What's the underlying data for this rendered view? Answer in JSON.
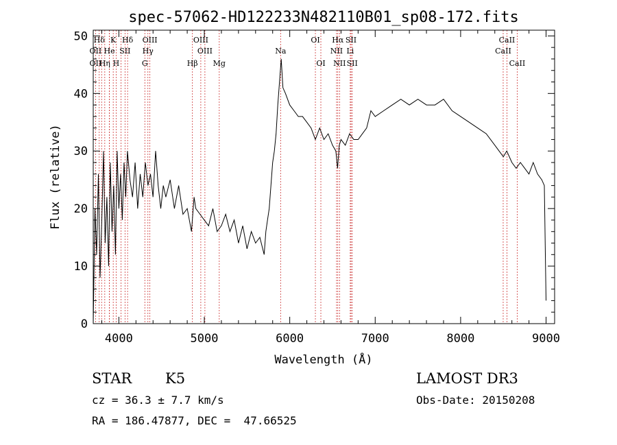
{
  "chart_data": {
    "type": "line",
    "title": "spec-57062-HD122233N482110B01_sp08-172.fits",
    "xlabel": "Wavelength (Å)",
    "ylabel": "Flux (relative)",
    "xlim": [
      3700,
      9100
    ],
    "ylim": [
      0,
      51
    ],
    "xticks": [
      4000,
      5000,
      6000,
      7000,
      8000,
      9000
    ],
    "yticks": [
      0,
      10,
      20,
      30,
      40,
      50
    ],
    "grid": false,
    "line_color": "#000000",
    "marker_color": "#cc3333",
    "series": [
      {
        "x": [
          3700,
          3720,
          3740,
          3760,
          3780,
          3800,
          3820,
          3840,
          3860,
          3880,
          3900,
          3920,
          3940,
          3960,
          3980,
          4000,
          4020,
          4040,
          4060,
          4080,
          4100,
          4130,
          4160,
          4190,
          4220,
          4250,
          4280,
          4310,
          4340,
          4370,
          4400,
          4430,
          4460,
          4490,
          4520,
          4550,
          4600,
          4650,
          4700,
          4750,
          4800,
          4850,
          4880,
          4900,
          4950,
          5000,
          5050,
          5100,
          5150,
          5200,
          5250,
          5300,
          5350,
          5400,
          5450,
          5500,
          5550,
          5600,
          5650,
          5700,
          5720,
          5740,
          5760,
          5780,
          5800,
          5820,
          5840,
          5860,
          5880,
          5900,
          5920,
          5950,
          6000,
          6050,
          6100,
          6150,
          6200,
          6250,
          6300,
          6350,
          6400,
          6450,
          6500,
          6540,
          6560,
          6580,
          6600,
          6650,
          6700,
          6750,
          6800,
          6850,
          6900,
          6950,
          7000,
          7100,
          7200,
          7300,
          7400,
          7500,
          7600,
          7700,
          7800,
          7900,
          8000,
          8100,
          8200,
          8300,
          8400,
          8500,
          8540,
          8600,
          8650,
          8700,
          8750,
          8800,
          8850,
          8900,
          8950,
          8980,
          9000
        ],
        "values": [
          0,
          20,
          12,
          26,
          8,
          18,
          30,
          14,
          22,
          10,
          28,
          16,
          24,
          12,
          30,
          20,
          26,
          18,
          28,
          22,
          30,
          25,
          22,
          28,
          20,
          26,
          22,
          28,
          24,
          26,
          22,
          30,
          24,
          20,
          24,
          22,
          25,
          20,
          24,
          19,
          20,
          16,
          22,
          20,
          19,
          18,
          17,
          20,
          16,
          17,
          19,
          16,
          18,
          14,
          17,
          13,
          16,
          14,
          15,
          12,
          16,
          18,
          20,
          24,
          28,
          30,
          33,
          38,
          42,
          46,
          41,
          40,
          38,
          37,
          36,
          36,
          35,
          34,
          32,
          34,
          32,
          33,
          31,
          30,
          27,
          31,
          32,
          31,
          33,
          32,
          32,
          33,
          34,
          37,
          36,
          37,
          38,
          39,
          38,
          39,
          38,
          38,
          39,
          37,
          36,
          35,
          34,
          33,
          31,
          29,
          30,
          28,
          27,
          28,
          27,
          26,
          28,
          26,
          25,
          24,
          4
        ]
      }
    ],
    "lines": [
      {
        "name": "Hδ",
        "x": 3770,
        "row": 0
      },
      {
        "name": "K",
        "x": 3934,
        "row": 0
      },
      {
        "name": "Hδ",
        "x": 4102,
        "row": 0
      },
      {
        "name": "OIII",
        "x": 4363,
        "row": 0
      },
      {
        "name": "OIII",
        "x": 4959,
        "row": 0
      },
      {
        "name": "OI",
        "x": 6300,
        "row": 0
      },
      {
        "name": "Hα",
        "x": 6563,
        "row": 0
      },
      {
        "name": "SII",
        "x": 6717,
        "row": 0
      },
      {
        "name": "CaII",
        "x": 8542,
        "row": 0
      },
      {
        "name": "OII",
        "x": 3727,
        "row": 1
      },
      {
        "name": "He",
        "x": 3889,
        "row": 1
      },
      {
        "name": "SII",
        "x": 4072,
        "row": 1
      },
      {
        "name": "Hγ",
        "x": 4340,
        "row": 1
      },
      {
        "name": "OIII",
        "x": 5007,
        "row": 1
      },
      {
        "name": "Na",
        "x": 5893,
        "row": 1
      },
      {
        "name": "NII",
        "x": 6548,
        "row": 1
      },
      {
        "name": "Li",
        "x": 6708,
        "row": 1
      },
      {
        "name": "CaII",
        "x": 8498,
        "row": 1
      },
      {
        "name": "OII",
        "x": 3727,
        "row": 2
      },
      {
        "name": "Hη",
        "x": 3835,
        "row": 2
      },
      {
        "name": "H",
        "x": 3968,
        "row": 2
      },
      {
        "name": "G",
        "x": 4304,
        "row": 2
      },
      {
        "name": "Hβ",
        "x": 4861,
        "row": 2
      },
      {
        "name": "Mg",
        "x": 5175,
        "row": 2
      },
      {
        "name": "OI",
        "x": 6364,
        "row": 2
      },
      {
        "name": "NII",
        "x": 6583,
        "row": 2
      },
      {
        "name": "SII",
        "x": 6731,
        "row": 2
      },
      {
        "name": "CaII",
        "x": 8662,
        "row": 2
      }
    ],
    "extra_marker_x": [
      3798,
      3889,
      4026
    ]
  },
  "info": {
    "object_class": "STAR",
    "subclass": "K5",
    "cz_line": "cz = 36.3 ± 7.7 km/s",
    "radec_line": "RA = 186.47877, DEC =  47.66525",
    "survey": "LAMOST DR3",
    "obs_date": "Obs-Date: 20150208"
  }
}
